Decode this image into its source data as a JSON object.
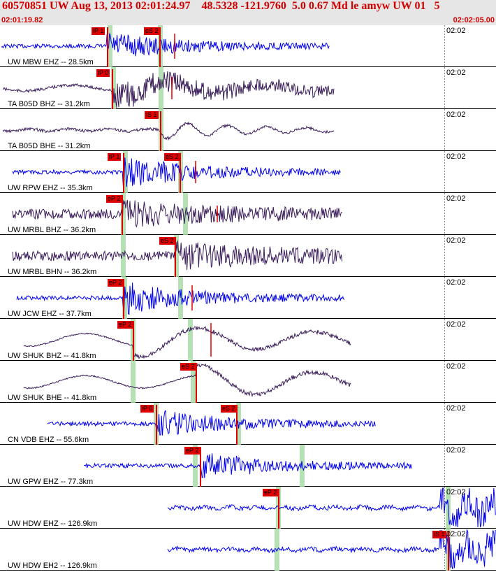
{
  "header": {
    "title": "60570851 UW Aug 13, 2013 02:01:24.97    48.5328 -121.9760  5.0 0.67 Md le amyw UW 01   5",
    "start_time": "02:01:19.82",
    "end_time": "02:02:05.00"
  },
  "colors": {
    "header_text": "#d40000",
    "header_bg": "#e6e6e6",
    "pick": "#e00000",
    "band": "#a8dca8",
    "trace_blue": "#0000ee",
    "trace_purple": "#3a1c5a"
  },
  "traces": [
    {
      "label": "UW MBW EHZ -- 28.5km",
      "time": "02:02",
      "color": "blue",
      "picks": [
        {
          "label": "iP 1"
        },
        {
          "label": "eS 2"
        }
      ]
    },
    {
      "label": "TA B05D BHZ -- 31.2km",
      "time": "02:02",
      "color": "purple",
      "picks": [
        {
          "label": "iP 0"
        }
      ]
    },
    {
      "label": "TA B05D BHE -- 31.2km",
      "time": "02:02",
      "color": "purple",
      "picks": [
        {
          "label": "iS 1"
        }
      ]
    },
    {
      "label": "UW RPW EHZ -- 35.3km",
      "time": "02:02",
      "color": "blue",
      "picks": [
        {
          "label": "iP 1"
        },
        {
          "label": "eS 2"
        }
      ]
    },
    {
      "label": "UW MRBL BHZ -- 36.2km",
      "time": "02:02",
      "color": "purple",
      "picks": [
        {
          "label": "eP 2"
        }
      ]
    },
    {
      "label": "UW MRBL BHN -- 36.2km",
      "time": "02:02",
      "color": "purple",
      "picks": [
        {
          "label": "eS 2"
        }
      ]
    },
    {
      "label": "UW JCW EHZ -- 37.7km",
      "time": "02:02",
      "color": "blue",
      "picks": [
        {
          "label": "eP 2"
        }
      ]
    },
    {
      "label": "UW SHUK BHZ -- 41.8km",
      "time": "02:02",
      "color": "purple",
      "picks": [
        {
          "label": "eP 2"
        }
      ]
    },
    {
      "label": "UW SHUK BHE -- 41.8km",
      "time": "02:02",
      "color": "purple",
      "picks": [
        {
          "label": "eS 2"
        }
      ]
    },
    {
      "label": "CN VDB EHZ -- 55.6km",
      "time": "02:02",
      "color": "blue",
      "picks": [
        {
          "label": "iP 0"
        },
        {
          "label": "eS 2"
        }
      ]
    },
    {
      "label": "UW GPW EHZ -- 77.3km",
      "time": "02:02",
      "color": "blue",
      "picks": [
        {
          "label": "eP 2"
        }
      ]
    },
    {
      "label": "UW HDW EHZ -- 126.9km",
      "time": "02:02",
      "color": "blue",
      "picks": [
        {
          "label": "eP 2"
        }
      ]
    },
    {
      "label": "UW HDW EH2 -- 126.9km",
      "time": "02:02",
      "color": "blue",
      "picks": [
        {
          "label": "iS 1"
        }
      ]
    }
  ]
}
